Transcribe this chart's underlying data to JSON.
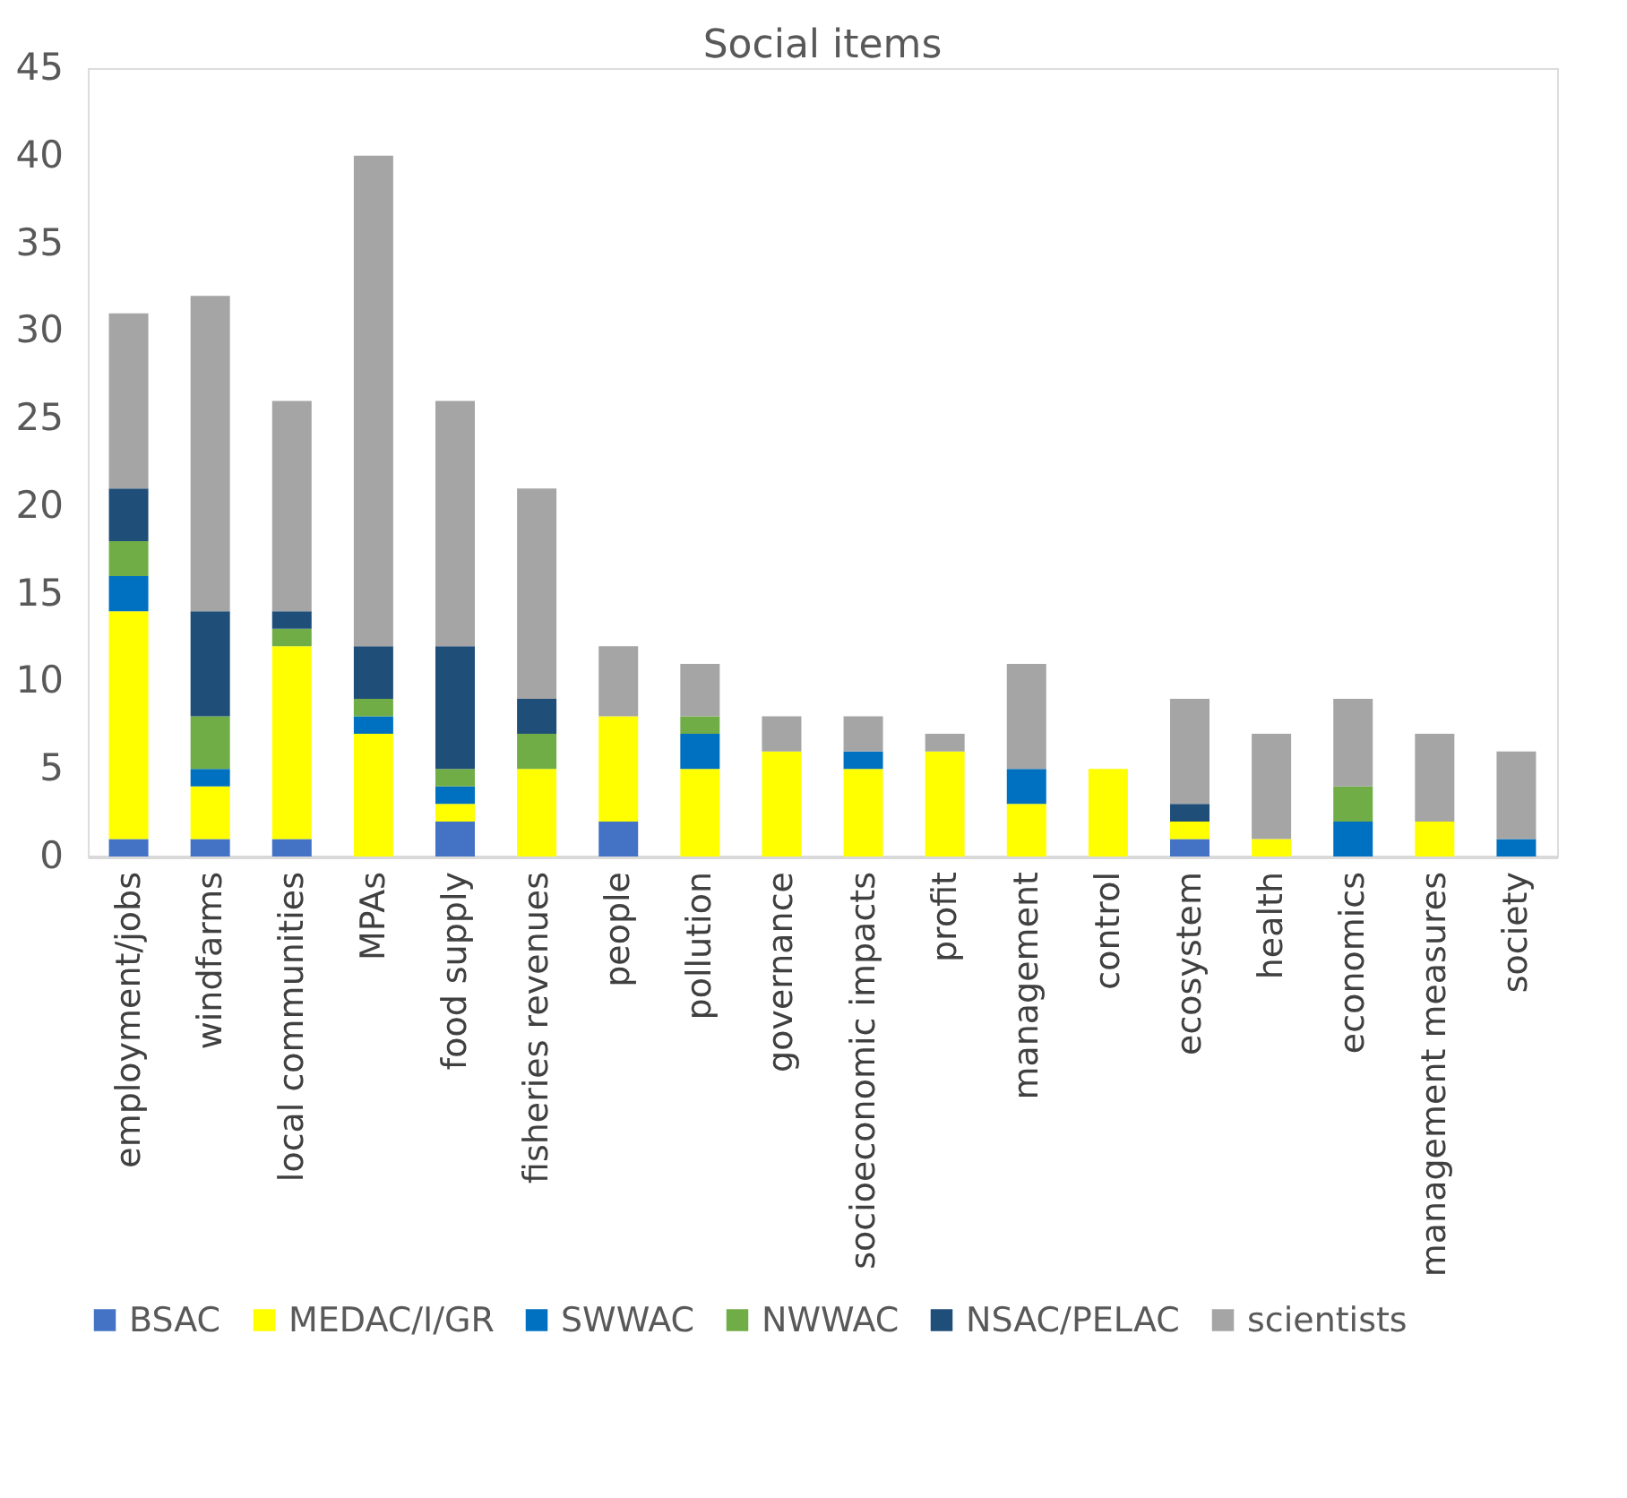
{
  "chart_data": {
    "type": "bar",
    "title": "Social items",
    "stacked": true,
    "legend": "bottom",
    "grid": false,
    "categories": [
      "employment/jobs",
      "windfarms",
      "local communities",
      "MPAs",
      "food supply",
      "fisheries revenues",
      "people",
      "pollution",
      "governance",
      "socioeconomic impacts",
      "profit",
      "management",
      "control",
      "ecosystem",
      "health",
      "economics",
      "management measures",
      "society"
    ],
    "ylim": [
      0,
      45
    ],
    "yticks": [
      0,
      5,
      10,
      15,
      20,
      25,
      30,
      35,
      40,
      45
    ],
    "series": [
      {
        "name": "BSAC",
        "color": "#4472c4",
        "values": [
          1,
          1,
          1,
          0,
          2,
          0,
          2,
          0,
          0,
          0,
          0,
          0,
          0,
          1,
          0,
          0,
          0,
          0
        ]
      },
      {
        "name": "MEDAC/I/GR",
        "color": "#ffff00",
        "values": [
          13,
          3,
          11,
          7,
          1,
          5,
          6,
          5,
          6,
          5,
          6,
          3,
          5,
          1,
          1,
          0,
          2,
          0
        ]
      },
      {
        "name": "SWWAC",
        "color": "#0070c0",
        "values": [
          2,
          1,
          0,
          1,
          1,
          0,
          0,
          2,
          0,
          1,
          0,
          2,
          0,
          0,
          0,
          2,
          0,
          1
        ]
      },
      {
        "name": "NWWAC",
        "color": "#70ad47",
        "values": [
          2,
          3,
          1,
          1,
          1,
          2,
          0,
          1,
          0,
          0,
          0,
          0,
          0,
          0,
          0,
          2,
          0,
          0
        ]
      },
      {
        "name": "NSAC/PELAC",
        "color": "#1f4e79",
        "values": [
          3,
          6,
          1,
          3,
          7,
          2,
          0,
          0,
          0,
          0,
          0,
          0,
          0,
          1,
          0,
          0,
          0,
          0
        ]
      },
      {
        "name": "scientists",
        "color": "#a5a5a5",
        "values": [
          10,
          18,
          12,
          28,
          14,
          12,
          4,
          3,
          2,
          2,
          1,
          6,
          0,
          6,
          6,
          5,
          5,
          5
        ]
      }
    ]
  }
}
